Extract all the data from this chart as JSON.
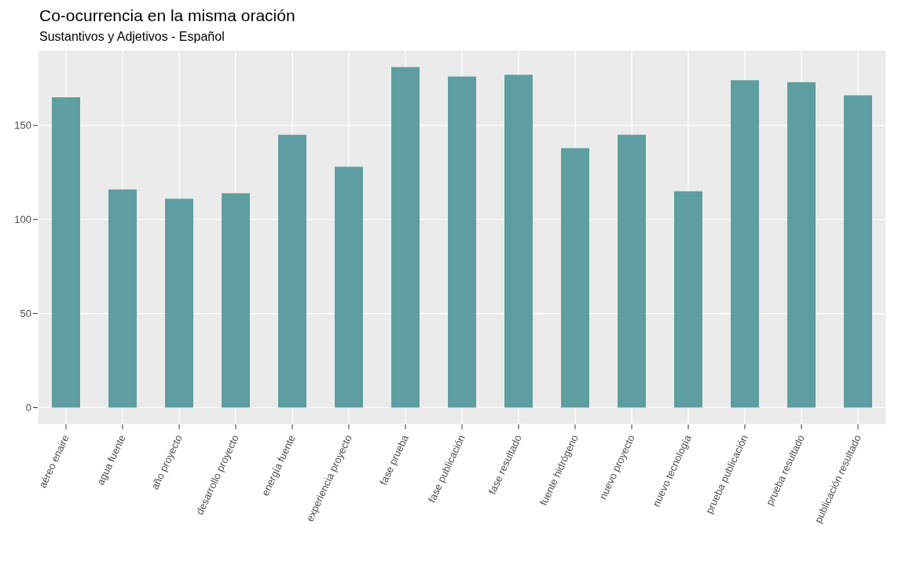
{
  "chart_data": {
    "type": "bar",
    "title": "Co-ocurrencia en la misma oración",
    "subtitle": "Sustantivos y Adjetivos - Español",
    "categories": [
      "aéreo enaire",
      "agua fuente",
      "año proyecto",
      "desarrollo proyecto",
      "energía fuente",
      "experiencia proyecto",
      "fase prueba",
      "fase publicación",
      "fase resultado",
      "fuente hidrógeno",
      "nuevo proyecto",
      "nuevo tecnología",
      "prueba publicación",
      "prueba resultado",
      "publicación resultado"
    ],
    "values": [
      165,
      116,
      111,
      114,
      145,
      128,
      181,
      176,
      177,
      138,
      145,
      115,
      174,
      173,
      166
    ],
    "color": "#5f9ea0",
    "ylim": [
      -9,
      190
    ],
    "yticks": [
      0,
      50,
      100,
      150
    ],
    "grid": true
  }
}
